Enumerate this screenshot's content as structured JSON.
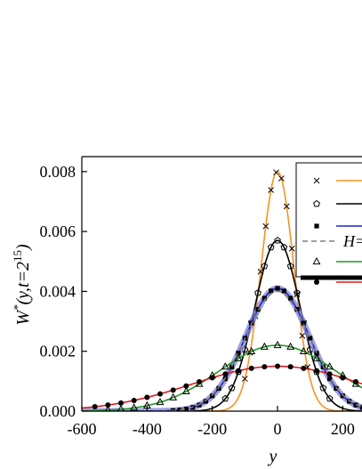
{
  "chart_data": {
    "type": "line",
    "xlabel": "y",
    "ylabel": "W*(y,t=2^15)",
    "ylabel_parts": {
      "w": "W",
      "star": "*",
      "args": "(y,t=2",
      "exp": "15",
      "close": ")"
    },
    "xlim": [
      -600,
      300
    ],
    "ylim": [
      0,
      0.0085
    ],
    "x_ticks": [
      -600,
      -400,
      -200,
      0,
      200
    ],
    "x_tick_labels": [
      "-600",
      "-400",
      "-200",
      "0",
      "200"
    ],
    "y_ticks": [
      0,
      0.002,
      0.004,
      0.006,
      0.008
    ],
    "y_tick_labels": [
      "0.000",
      "0.002",
      "0.004",
      "0.006",
      "0.008"
    ],
    "series": [
      {
        "marker": "cross",
        "line_color": "#f7931e",
        "peak": 0.008,
        "width": 50,
        "marker_step": 16,
        "marker_range": [
          -100,
          100
        ]
      },
      {
        "marker": "pentagon",
        "line_color": "#000000",
        "peak": 0.0057,
        "width": 70,
        "marker_step": 20,
        "marker_range": [
          -160,
          160
        ]
      },
      {
        "marker": "square",
        "line_color": "#1f26c7",
        "peak": 0.0041,
        "width": 98,
        "marker_step": 20,
        "marker_range": [
          -320,
          300
        ],
        "band": true
      },
      {
        "marker": "none",
        "line_color": "#7f7f7f",
        "dashed": true,
        "peak": 0.004,
        "width": 100,
        "legend_text": "H="
      },
      {
        "marker": "triangle",
        "line_color": "#1f9a1f",
        "peak": 0.0022,
        "width": 180,
        "marker_step": 40,
        "marker_range": [
          -520,
          300
        ]
      },
      {
        "marker": "circle",
        "line_color": "#e8171b",
        "peak": 0.0015,
        "width": 260,
        "marker_step": 40,
        "marker_range": [
          -560,
          300
        ]
      }
    ]
  }
}
